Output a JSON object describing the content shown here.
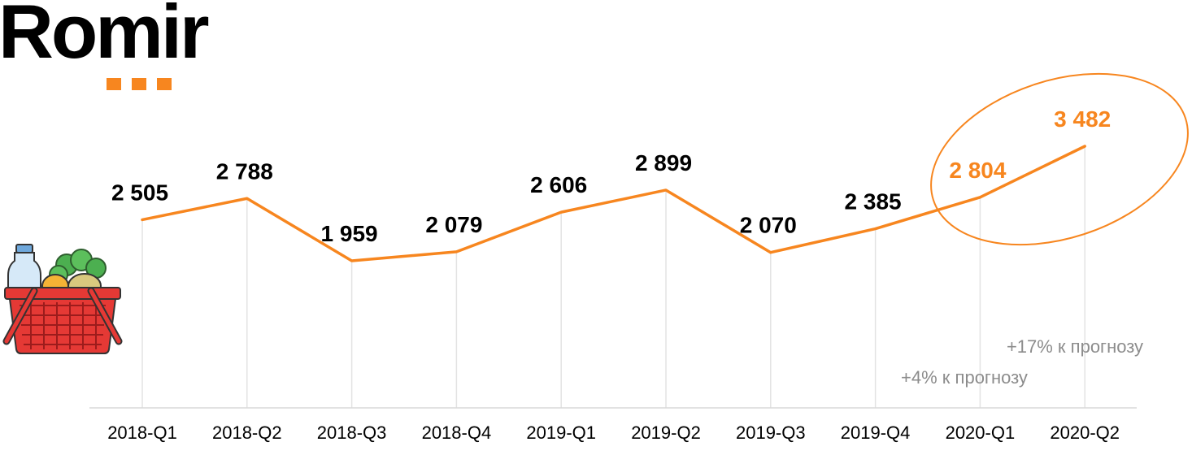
{
  "brand": {
    "name": "Romir",
    "accent_color": "#f7861f"
  },
  "icon": {
    "name": "grocery-basket-icon"
  },
  "chart_data": {
    "type": "line",
    "categories": [
      "2018-Q1",
      "2018-Q2",
      "2018-Q3",
      "2018-Q4",
      "2019-Q1",
      "2019-Q2",
      "2019-Q3",
      "2019-Q4",
      "2020-Q1",
      "2020-Q2"
    ],
    "values": [
      2505,
      2788,
      1959,
      2079,
      2606,
      2899,
      2070,
      2385,
      2804,
      3482
    ],
    "value_labels": [
      "2 505",
      "2 788",
      "1 959",
      "2 079",
      "2 606",
      "2 899",
      "2 070",
      "2 385",
      "2 804",
      "3 482"
    ],
    "highlighted_categories": [
      "2020-Q1",
      "2020-Q2"
    ],
    "annotations": [
      "+17% к прогнозу",
      "+4% к прогнозу"
    ],
    "line_color": "#f7861f",
    "highlight_color": "#f7861f",
    "grid": "vertical"
  }
}
